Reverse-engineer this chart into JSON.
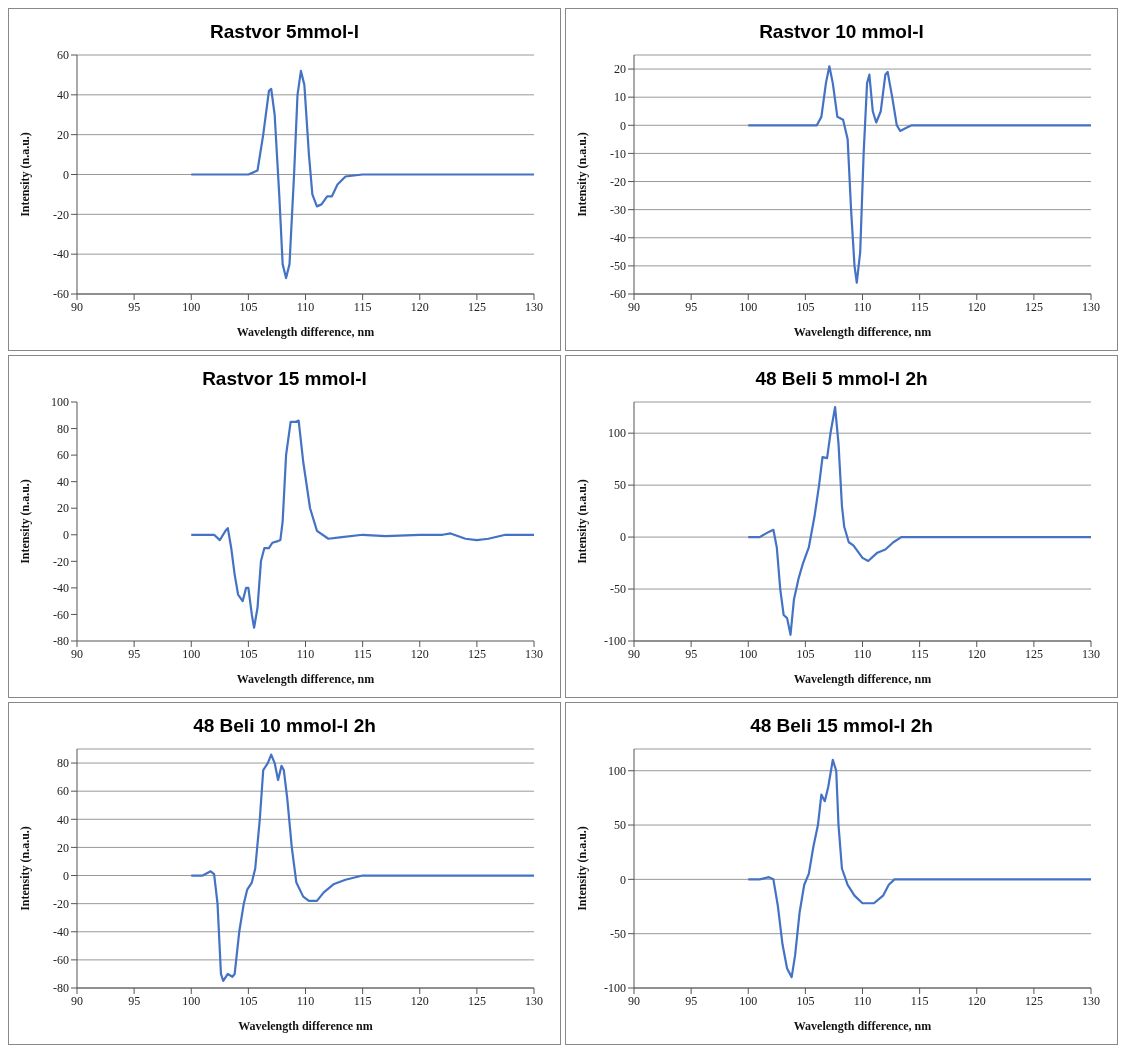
{
  "chart_data": [
    {
      "type": "line",
      "title": "Rastvor 5mmol-l",
      "xlabel": "Wavelength difference, nm",
      "ylabel": "Intensity (n.a.u.)",
      "xlim": [
        90,
        130
      ],
      "xticks": [
        90,
        95,
        100,
        105,
        110,
        115,
        120,
        125,
        130
      ],
      "ylim": [
        -60,
        60
      ],
      "yticks": [
        -60,
        -40,
        -20,
        0,
        20,
        40,
        60
      ],
      "grid": "y",
      "series": [
        {
          "color": "#4472c4",
          "x": [
            100,
            105,
            105.8,
            106.3,
            106.8,
            107,
            107.3,
            107.7,
            108,
            108.3,
            108.6,
            109,
            109.3,
            109.6,
            109.9,
            110.3,
            110.6,
            111,
            111.4,
            111.9,
            112.3,
            112.8,
            113.5,
            115,
            120,
            130
          ],
          "values": [
            0,
            0,
            2,
            20,
            42,
            43,
            30,
            -10,
            -45,
            -52,
            -45,
            0,
            40,
            52,
            45,
            10,
            -10,
            -16,
            -15,
            -11,
            -11,
            -5,
            -1,
            0,
            0,
            0
          ]
        }
      ]
    },
    {
      "type": "line",
      "title": "Rastvor 10 mmol-l",
      "xlabel": "Wavelength difference, nm",
      "ylabel": "Intensity (n.a.u.)",
      "xlim": [
        90,
        130
      ],
      "xticks": [
        90,
        95,
        100,
        105,
        110,
        115,
        120,
        125,
        130
      ],
      "ylim": [
        -60,
        25
      ],
      "yticks": [
        -60,
        -50,
        -40,
        -30,
        -20,
        -10,
        0,
        10,
        20
      ],
      "grid": "y",
      "series": [
        {
          "color": "#4472c4",
          "x": [
            100,
            106,
            106.4,
            106.8,
            107.1,
            107.4,
            107.8,
            108.3,
            108.7,
            109,
            109.3,
            109.5,
            109.8,
            110.1,
            110.4,
            110.6,
            110.9,
            111.2,
            111.6,
            112,
            112.2,
            112.6,
            113,
            113.3,
            113.8,
            114.3,
            130
          ],
          "values": [
            0,
            0,
            3,
            15,
            21,
            15,
            3,
            2,
            -5,
            -30,
            -50,
            -56,
            -45,
            -10,
            15,
            18,
            5,
            1,
            5,
            18,
            19,
            10,
            0,
            -2,
            -1,
            0,
            0
          ]
        }
      ]
    },
    {
      "type": "line",
      "title": "Rastvor 15 mmol-l",
      "xlabel": "Wavelength difference, nm",
      "ylabel": "Intensity (n.a.u.)",
      "xlim": [
        90,
        130
      ],
      "xticks": [
        90,
        95,
        100,
        105,
        110,
        115,
        120,
        125,
        130
      ],
      "ylim": [
        -80,
        100
      ],
      "yticks": [
        -80,
        -60,
        -40,
        -20,
        0,
        20,
        40,
        60,
        80,
        100
      ],
      "series": [
        {
          "color": "#4472c4",
          "x": [
            100,
            102,
            102.5,
            103,
            103.2,
            103.5,
            103.8,
            104.1,
            104.5,
            104.8,
            105,
            105.3,
            105.5,
            105.8,
            106.1,
            106.4,
            106.8,
            107.1,
            107.5,
            107.8,
            108,
            108.3,
            108.7,
            109.1,
            109.4,
            109.8,
            110.4,
            111,
            112,
            113,
            115,
            117,
            120,
            122,
            122.7,
            124,
            125,
            126,
            127.5,
            130
          ],
          "values": [
            0,
            0,
            -4,
            3,
            5,
            -10,
            -30,
            -45,
            -50,
            -40,
            -40,
            -60,
            -70,
            -55,
            -20,
            -10,
            -10,
            -6,
            -5,
            -4,
            10,
            60,
            85,
            85,
            86,
            55,
            20,
            3,
            -3,
            -2,
            0,
            -1,
            0,
            0,
            1,
            -3,
            -4,
            -3,
            0,
            0
          ]
        }
      ]
    },
    {
      "type": "line",
      "title": "48 Beli 5 mmol-l 2h",
      "xlabel": "Wavelength difference, nm",
      "ylabel": "Intensity (n.a.u.)",
      "xlim": [
        90,
        130
      ],
      "xticks": [
        90,
        95,
        100,
        105,
        110,
        115,
        120,
        125,
        130
      ],
      "ylim": [
        -100,
        130
      ],
      "yticks": [
        -100,
        -50,
        0,
        50,
        100
      ],
      "grid": "y",
      "series": [
        {
          "color": "#4472c4",
          "x": [
            100,
            101,
            101.8,
            102.2,
            102.5,
            102.8,
            103.1,
            103.4,
            103.7,
            104,
            104.4,
            104.8,
            105.3,
            105.8,
            106.2,
            106.5,
            106.9,
            107.2,
            107.6,
            107.9,
            108.2,
            108.4,
            108.8,
            109.2,
            110,
            110.5,
            111.3,
            112,
            112.7,
            113.4,
            130
          ],
          "values": [
            0,
            0,
            5,
            7,
            -10,
            -50,
            -75,
            -78,
            -94,
            -60,
            -40,
            -25,
            -10,
            20,
            50,
            77,
            76,
            100,
            125,
            90,
            30,
            10,
            -5,
            -8,
            -20,
            -23,
            -15,
            -12,
            -5,
            0,
            0
          ]
        }
      ]
    },
    {
      "type": "line",
      "title": "48 Beli 10 mmol-l 2h",
      "xlabel": "Wavelength difference nm",
      "ylabel": "Intensity (n.a.u.)",
      "xlim": [
        90,
        130
      ],
      "xticks": [
        90,
        95,
        100,
        105,
        110,
        115,
        120,
        125,
        130
      ],
      "ylim": [
        -80,
        90
      ],
      "yticks": [
        -80,
        -60,
        -40,
        -20,
        0,
        20,
        40,
        60,
        80
      ],
      "grid": "y",
      "series": [
        {
          "color": "#4472c4",
          "x": [
            100,
            101,
            101.7,
            102,
            102.3,
            102.6,
            102.8,
            103.2,
            103.6,
            103.8,
            104.2,
            104.6,
            104.9,
            105.3,
            105.6,
            106,
            106.3,
            106.7,
            107,
            107.3,
            107.6,
            107.9,
            108.1,
            108.4,
            108.8,
            109.2,
            109.8,
            110.3,
            111,
            111.6,
            112.5,
            113.5,
            115,
            130
          ],
          "values": [
            0,
            0,
            3,
            1,
            -20,
            -70,
            -75,
            -70,
            -72,
            -70,
            -40,
            -20,
            -10,
            -5,
            5,
            40,
            75,
            80,
            86,
            80,
            68,
            78,
            75,
            55,
            20,
            -5,
            -15,
            -18,
            -18,
            -12,
            -6,
            -3,
            0,
            0
          ]
        }
      ]
    },
    {
      "type": "line",
      "title": "48 Beli 15 mmol-l 2h",
      "xlabel": "Wavelength difference, nm",
      "ylabel": "Intensity (n.a.u.)",
      "xlim": [
        90,
        130
      ],
      "xticks": [
        90,
        95,
        100,
        105,
        110,
        115,
        120,
        125,
        130
      ],
      "ylim": [
        -100,
        120
      ],
      "yticks": [
        -100,
        -50,
        0,
        50,
        100
      ],
      "grid": "y",
      "series": [
        {
          "color": "#4472c4",
          "x": [
            100,
            101,
            101.8,
            102.2,
            102.6,
            103,
            103.4,
            103.8,
            104.1,
            104.5,
            104.9,
            105.3,
            105.7,
            106.1,
            106.4,
            106.7,
            107,
            107.4,
            107.7,
            107.9,
            108.2,
            108.7,
            109.3,
            110,
            111,
            111.8,
            112.3,
            112.8,
            130
          ],
          "values": [
            0,
            0,
            2,
            0,
            -25,
            -60,
            -82,
            -90,
            -70,
            -30,
            -5,
            5,
            30,
            50,
            78,
            72,
            85,
            110,
            100,
            50,
            10,
            -5,
            -15,
            -22,
            -22,
            -15,
            -5,
            0,
            0
          ]
        }
      ]
    }
  ]
}
